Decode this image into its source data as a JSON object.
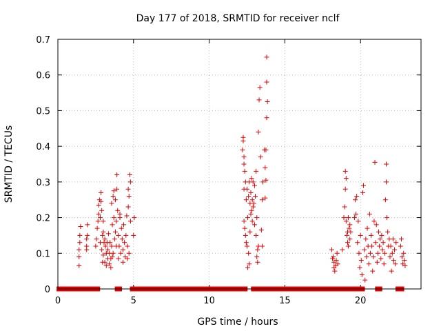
{
  "chart_data": {
    "type": "scatter",
    "title": "Day 177 of 2018, SRMTID for receiver nclf",
    "xlabel": "GPS time / hours",
    "ylabel": "SRMTID / TECUs",
    "xlim": [
      0,
      24
    ],
    "ylim": [
      0,
      0.7
    ],
    "xticks": [
      0,
      5,
      10,
      15,
      20
    ],
    "yticks": [
      0,
      0.1,
      0.2,
      0.3,
      0.4,
      0.5,
      0.6,
      0.7
    ],
    "xtick_labels": [
      "0",
      "5",
      "10",
      "15",
      "20"
    ],
    "ytick_labels": [
      "0",
      "0.1",
      "0.2",
      "0.3",
      "0.4",
      "0.5",
      "0.6",
      "0.7"
    ],
    "grid": true,
    "marker": "+",
    "color": "#e00000",
    "series": [
      {
        "name": "SRMTID",
        "points": [
          [
            1.4,
            0.065
          ],
          [
            1.4,
            0.09
          ],
          [
            1.4,
            0.11
          ],
          [
            1.45,
            0.13
          ],
          [
            1.45,
            0.15
          ],
          [
            1.5,
            0.175
          ],
          [
            1.9,
            0.11
          ],
          [
            1.9,
            0.12
          ],
          [
            1.9,
            0.14
          ],
          [
            1.95,
            0.15
          ],
          [
            1.95,
            0.18
          ],
          [
            2.5,
            0.12
          ],
          [
            2.55,
            0.14
          ],
          [
            2.6,
            0.17
          ],
          [
            2.65,
            0.19
          ],
          [
            2.7,
            0.21
          ],
          [
            2.7,
            0.235
          ],
          [
            2.75,
            0.25
          ],
          [
            2.8,
            0.13
          ],
          [
            2.8,
            0.2
          ],
          [
            2.85,
            0.245
          ],
          [
            2.85,
            0.27
          ],
          [
            2.9,
            0.11
          ],
          [
            2.9,
            0.22
          ],
          [
            2.95,
            0.075
          ],
          [
            2.95,
            0.15
          ],
          [
            3.0,
            0.095
          ],
          [
            3.0,
            0.16
          ],
          [
            3.0,
            0.19
          ],
          [
            3.05,
            0.13
          ],
          [
            3.1,
            0.075
          ],
          [
            3.1,
            0.14
          ],
          [
            3.15,
            0.12
          ],
          [
            3.2,
            0.065
          ],
          [
            3.2,
            0.1
          ],
          [
            3.25,
            0.13
          ],
          [
            3.3,
            0.085
          ],
          [
            3.3,
            0.11
          ],
          [
            3.35,
            0.155
          ],
          [
            3.4,
            0.07
          ],
          [
            3.4,
            0.1
          ],
          [
            3.45,
            0.13
          ],
          [
            3.5,
            0.06
          ],
          [
            3.5,
            0.085
          ],
          [
            3.55,
            0.12
          ],
          [
            3.55,
            0.24
          ],
          [
            3.6,
            0.09
          ],
          [
            3.6,
            0.18
          ],
          [
            3.65,
            0.1
          ],
          [
            3.65,
            0.26
          ],
          [
            3.7,
            0.2
          ],
          [
            3.7,
            0.275
          ],
          [
            3.75,
            0.14
          ],
          [
            3.8,
            0.16
          ],
          [
            3.8,
            0.25
          ],
          [
            3.85,
            0.12
          ],
          [
            3.85,
            0.19
          ],
          [
            3.9,
            0.28
          ],
          [
            3.9,
            0.32
          ],
          [
            3.95,
            0.22
          ],
          [
            4.0,
            0.085
          ],
          [
            4.0,
            0.15
          ],
          [
            4.05,
            0.12
          ],
          [
            4.1,
            0.2
          ],
          [
            4.1,
            0.21
          ],
          [
            4.15,
            0.1
          ],
          [
            4.2,
            0.17
          ],
          [
            4.25,
            0.14
          ],
          [
            4.3,
            0.075
          ],
          [
            4.3,
            0.11
          ],
          [
            4.35,
            0.18
          ],
          [
            4.4,
            0.13
          ],
          [
            4.45,
            0.09
          ],
          [
            4.5,
            0.15
          ],
          [
            4.55,
            0.205
          ],
          [
            4.6,
            0.085
          ],
          [
            4.6,
            0.12
          ],
          [
            4.65,
            0.23
          ],
          [
            4.65,
            0.28
          ],
          [
            4.7,
            0.1
          ],
          [
            4.7,
            0.26
          ],
          [
            4.75,
            0.32
          ],
          [
            4.8,
            0.19
          ],
          [
            4.8,
            0.3
          ],
          [
            5.0,
            0.15
          ],
          [
            5.05,
            0.2
          ],
          [
            12.2,
            0.39
          ],
          [
            12.25,
            0.415
          ],
          [
            12.25,
            0.425
          ],
          [
            12.3,
            0.37
          ],
          [
            12.3,
            0.35
          ],
          [
            12.35,
            0.33
          ],
          [
            12.3,
            0.28
          ],
          [
            12.3,
            0.19
          ],
          [
            12.35,
            0.17
          ],
          [
            12.4,
            0.3
          ],
          [
            12.4,
            0.15
          ],
          [
            12.45,
            0.25
          ],
          [
            12.45,
            0.13
          ],
          [
            12.5,
            0.28
          ],
          [
            12.5,
            0.12
          ],
          [
            12.55,
            0.2
          ],
          [
            12.55,
            0.06
          ],
          [
            12.6,
            0.26
          ],
          [
            12.6,
            0.1
          ],
          [
            12.65,
            0.3
          ],
          [
            12.65,
            0.07
          ],
          [
            12.7,
            0.24
          ],
          [
            12.7,
            0.16
          ],
          [
            12.75,
            0.27
          ],
          [
            12.75,
            0.21
          ],
          [
            12.8,
            0.31
          ],
          [
            12.8,
            0.22
          ],
          [
            12.85,
            0.25
          ],
          [
            12.85,
            0.19
          ],
          [
            12.9,
            0.3
          ],
          [
            12.9,
            0.23
          ],
          [
            12.95,
            0.24
          ],
          [
            13.0,
            0.29
          ],
          [
            13.0,
            0.18
          ],
          [
            13.05,
            0.26
          ],
          [
            13.1,
            0.33
          ],
          [
            13.1,
            0.15
          ],
          [
            13.15,
            0.2
          ],
          [
            13.15,
            0.09
          ],
          [
            13.2,
            0.075
          ],
          [
            13.2,
            0.11
          ],
          [
            13.25,
            0.12
          ],
          [
            13.25,
            0.44
          ],
          [
            13.3,
            0.53
          ],
          [
            13.35,
            0.565
          ],
          [
            13.4,
            0.37
          ],
          [
            13.45,
            0.165
          ],
          [
            13.5,
            0.12
          ],
          [
            13.5,
            0.25
          ],
          [
            13.55,
            0.3
          ],
          [
            13.65,
            0.39
          ],
          [
            13.7,
            0.34
          ],
          [
            13.7,
            0.255
          ],
          [
            13.75,
            0.39
          ],
          [
            13.75,
            0.305
          ],
          [
            13.8,
            0.48
          ],
          [
            13.8,
            0.58
          ],
          [
            13.85,
            0.525
          ],
          [
            13.8,
            0.65
          ],
          [
            18.1,
            0.11
          ],
          [
            18.15,
            0.085
          ],
          [
            18.2,
            0.09
          ],
          [
            18.25,
            0.06
          ],
          [
            18.25,
            0.075
          ],
          [
            18.3,
            0.05
          ],
          [
            18.35,
            0.065
          ],
          [
            18.4,
            0.08
          ],
          [
            18.45,
            0.1
          ],
          [
            18.5,
            0.07
          ],
          [
            18.8,
            0.11
          ],
          [
            18.9,
            0.2
          ],
          [
            18.95,
            0.23
          ],
          [
            19.0,
            0.28
          ],
          [
            19.0,
            0.33
          ],
          [
            19.05,
            0.31
          ],
          [
            19.05,
            0.19
          ],
          [
            19.1,
            0.15
          ],
          [
            19.15,
            0.16
          ],
          [
            19.15,
            0.13
          ],
          [
            19.2,
            0.12
          ],
          [
            19.2,
            0.2
          ],
          [
            19.25,
            0.17
          ],
          [
            19.3,
            0.14
          ],
          [
            19.3,
            0.18
          ],
          [
            19.35,
            0.16
          ],
          [
            19.6,
            0.2
          ],
          [
            19.65,
            0.25
          ],
          [
            19.7,
            0.21
          ],
          [
            19.75,
            0.26
          ],
          [
            19.8,
            0.13
          ],
          [
            19.85,
            0.19
          ],
          [
            19.9,
            0.1
          ],
          [
            19.95,
            0.06
          ],
          [
            20.0,
            0.15
          ],
          [
            20.05,
            0.08
          ],
          [
            20.1,
            0.04
          ],
          [
            20.15,
            0.27
          ],
          [
            20.2,
            0.29
          ],
          [
            20.25,
            0.11
          ],
          [
            20.3,
            0.025
          ],
          [
            20.35,
            0.14
          ],
          [
            20.4,
            0.09
          ],
          [
            20.45,
            0.17
          ],
          [
            20.5,
            0.12
          ],
          [
            20.55,
            0.07
          ],
          [
            20.6,
            0.21
          ],
          [
            20.65,
            0.1
          ],
          [
            20.7,
            0.15
          ],
          [
            20.75,
            0.12
          ],
          [
            20.8,
            0.05
          ],
          [
            20.85,
            0.09
          ],
          [
            20.9,
            0.19
          ],
          [
            20.95,
            0.355
          ],
          [
            21.0,
            0.13
          ],
          [
            21.05,
            0.18
          ],
          [
            21.1,
            0.075
          ],
          [
            21.15,
            0.1
          ],
          [
            21.2,
            0.16
          ],
          [
            21.25,
            0.12
          ],
          [
            21.3,
            0.14
          ],
          [
            21.35,
            0.085
          ],
          [
            21.4,
            0.15
          ],
          [
            21.45,
            0.11
          ],
          [
            21.5,
            0.13
          ],
          [
            21.55,
            0.07
          ],
          [
            21.6,
            0.1
          ],
          [
            21.65,
            0.25
          ],
          [
            21.7,
            0.35
          ],
          [
            21.7,
            0.3
          ],
          [
            21.75,
            0.2
          ],
          [
            21.8,
            0.16
          ],
          [
            21.85,
            0.12
          ],
          [
            21.9,
            0.14
          ],
          [
            21.95,
            0.09
          ],
          [
            22.0,
            0.12
          ],
          [
            22.05,
            0.05
          ],
          [
            22.1,
            0.1
          ],
          [
            22.15,
            0.14
          ],
          [
            22.2,
            0.08
          ],
          [
            22.25,
            0.11
          ],
          [
            22.3,
            0.07
          ],
          [
            22.35,
            0.13
          ],
          [
            22.65,
            0.12
          ],
          [
            22.7,
            0.14
          ],
          [
            22.75,
            0.09
          ],
          [
            22.8,
            0.07
          ],
          [
            22.85,
            0.1
          ],
          [
            22.9,
            0.08
          ],
          [
            22.95,
            0.065
          ]
        ],
        "zero_ranges": [
          [
            0.05,
            1.05
          ],
          [
            1.1,
            1.35
          ],
          [
            1.5,
            2.5
          ],
          [
            2.55,
            2.65
          ],
          [
            3.9,
            4.1
          ],
          [
            4.9,
            12.4
          ],
          [
            12.9,
            13.5
          ],
          [
            13.55,
            18.9
          ],
          [
            19.05,
            19.3
          ],
          [
            19.5,
            19.9
          ],
          [
            20.1,
            20.15
          ],
          [
            21.1,
            21.3
          ],
          [
            22.45,
            22.75
          ]
        ]
      }
    ]
  }
}
